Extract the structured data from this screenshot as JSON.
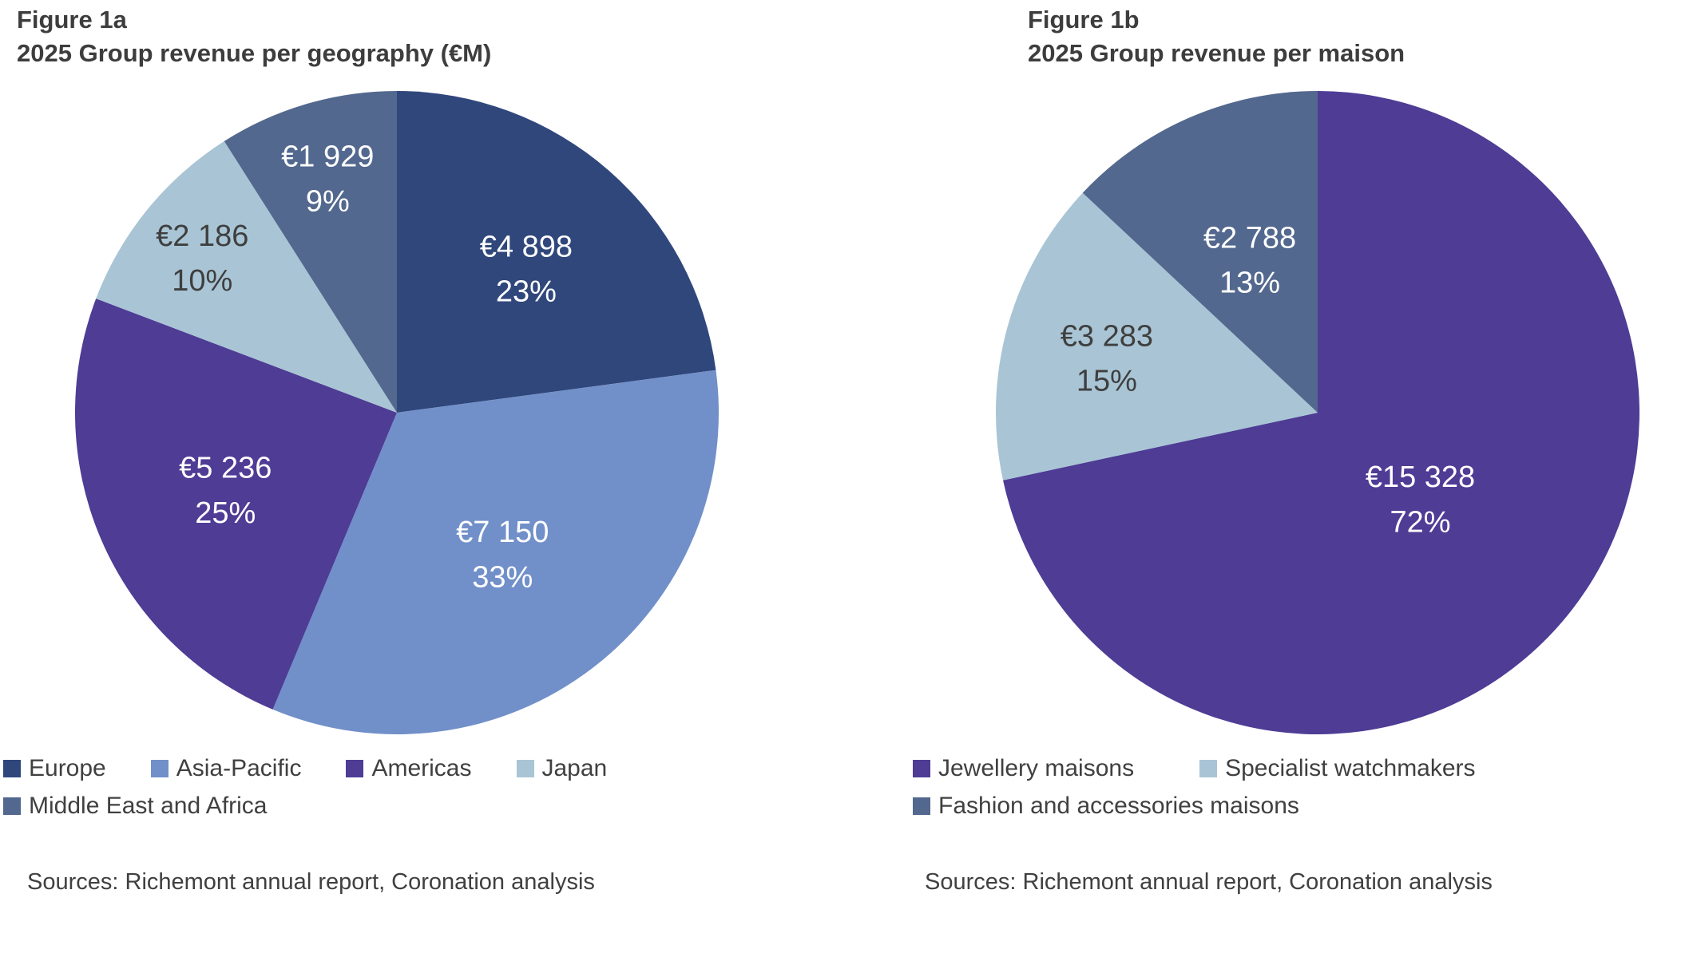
{
  "page": {
    "background": "#ffffff",
    "text_color": "#404040"
  },
  "chart_data": [
    {
      "type": "pie",
      "figure_label": "Figure 1a",
      "title": "2025 Group revenue per geography (€M)",
      "source_note": "Sources: Richemont annual report, Coronation analysis",
      "start_angle_deg": 0,
      "direction": "clockwise",
      "legend_position": "bottom-left",
      "slices": [
        {
          "label": "Europe",
          "value": 4898,
          "value_label": "€4 898",
          "pct_label": "23%",
          "color": "#30477c",
          "text_color": "#ffffff",
          "label_r": 0.61
        },
        {
          "label": "Asia-Pacific",
          "value": 7150,
          "value_label": "€7 150",
          "pct_label": "33%",
          "color": "#7190c9",
          "text_color": "#ffffff",
          "label_r": 0.54
        },
        {
          "label": "Americas",
          "value": 5236,
          "value_label": "€5 236",
          "pct_label": "25%",
          "color": "#4e3c95",
          "text_color": "#ffffff",
          "label_r": 0.58
        },
        {
          "label": "Japan",
          "value": 2186,
          "value_label": "€2 186",
          "pct_label": "10%",
          "color": "#a9c5d5",
          "text_color": "#3f3f3f",
          "label_r": 0.78
        },
        {
          "label": "Middle East and Africa",
          "value": 1929,
          "value_label": "€1 929",
          "pct_label": "9%",
          "color": "#53688e",
          "text_color": "#ffffff",
          "label_r": 0.77
        }
      ]
    },
    {
      "type": "pie",
      "figure_label": "Figure 1b",
      "title": "2025 Group revenue per maison",
      "source_note": "Sources: Richemont annual report, Coronation analysis",
      "start_angle_deg": 0,
      "direction": "clockwise",
      "legend_position": "bottom-left",
      "slices": [
        {
          "label": "Jewellery maisons",
          "value": 15328,
          "value_label": "€15 328",
          "pct_label": "72%",
          "color": "#4e3c95",
          "text_color": "#ffffff",
          "label_r": 0.41
        },
        {
          "label": "Specialist watchmakers",
          "value": 3283,
          "value_label": "€3 283",
          "pct_label": "15%",
          "color": "#a9c5d5",
          "text_color": "#3f3f3f",
          "label_r": 0.68
        },
        {
          "label": "Fashion and accessories maisons",
          "value": 2788,
          "value_label": "€2 788",
          "pct_label": "13%",
          "color": "#53688e",
          "text_color": "#ffffff",
          "label_r": 0.53
        }
      ]
    }
  ]
}
